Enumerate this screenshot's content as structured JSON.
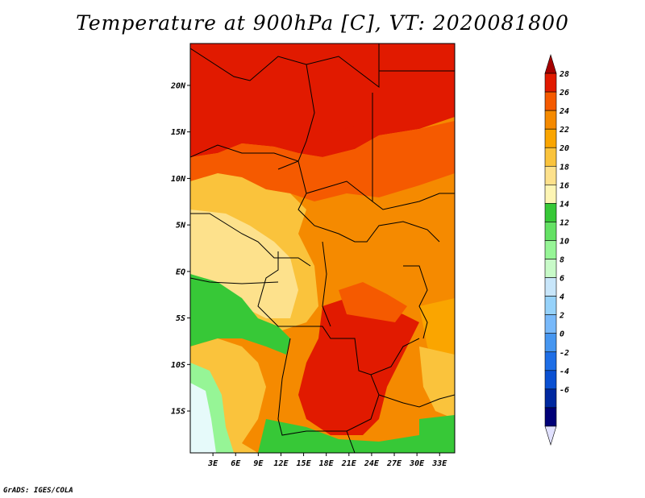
{
  "title": "Temperature at 900hPa [C], VT: 2020081800",
  "credit": "GrADS: IGES/COLA",
  "map": {
    "lat_labels": [
      "20N",
      "15N",
      "10N",
      "5N",
      "EQ",
      "5S",
      "10S",
      "15S"
    ],
    "lat_values": [
      20,
      15,
      10,
      5,
      0,
      -5,
      -10,
      -15
    ],
    "lon_labels": [
      "3E",
      "6E",
      "9E",
      "12E",
      "15E",
      "18E",
      "21E",
      "24E",
      "27E",
      "30E",
      "33E"
    ],
    "lon_values": [
      3,
      6,
      9,
      12,
      15,
      18,
      21,
      24,
      27,
      30,
      33
    ],
    "lon_range": [
      0,
      35
    ],
    "lat_range": [
      -19.5,
      24.5
    ]
  },
  "colorbar": {
    "labels": [
      "28",
      "26",
      "24",
      "22",
      "20",
      "18",
      "16",
      "14",
      "12",
      "10",
      "8",
      "6",
      "4",
      "2",
      "0",
      "-2",
      "-4",
      "-6"
    ],
    "colors": [
      "#a50000",
      "#e11a00",
      "#f55a00",
      "#f58a00",
      "#faa500",
      "#fac33c",
      "#fde18c",
      "#fdf5b4",
      "#37c837",
      "#64e164",
      "#96f596",
      "#c8fac8",
      "#c8e6fa",
      "#96d2fa",
      "#78b9fa",
      "#4696f0",
      "#1e6ee6",
      "#0a50d2",
      "#0028a0",
      "#000078",
      "#e1e1ff"
    ]
  }
}
